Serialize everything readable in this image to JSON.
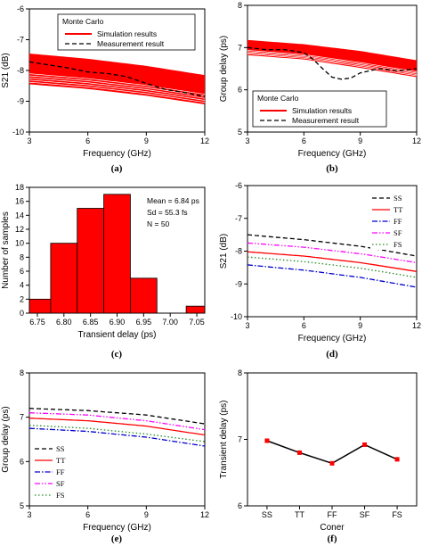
{
  "colors": {
    "simulation": "#ff0000",
    "measurement": "#000000",
    "SS": "#000000",
    "TT": "#ff0000",
    "FF": "#0000cc",
    "SF": "#ff00ff",
    "FS": "#228b22"
  },
  "chart_data": [
    {
      "id": "a",
      "type": "line",
      "caption": "(a)",
      "xlabel": "Frequency (GHz)",
      "ylabel": "S21 (dB)",
      "xlim": [
        3,
        12
      ],
      "ylim": [
        -10,
        -6
      ],
      "xticks": [
        3,
        6,
        9,
        12
      ],
      "yticks": [
        -10,
        -9,
        -8,
        -7,
        -6
      ],
      "legend_title": "Monte Carlo",
      "legend_position": "top",
      "band": {
        "name": "Simulation results",
        "x": [
          3,
          6,
          9,
          12
        ],
        "upper": [
          -7.45,
          -7.62,
          -7.85,
          -8.15
        ],
        "lower": [
          -8.45,
          -8.6,
          -8.82,
          -9.1
        ],
        "edge_lines": 5
      },
      "series": [
        {
          "name": "Measurement result",
          "style": "dashed",
          "x": [
            3,
            4,
            5,
            6,
            7,
            8,
            9,
            10,
            11,
            12
          ],
          "y": [
            -7.72,
            -7.82,
            -7.92,
            -8.05,
            -8.1,
            -8.2,
            -8.42,
            -8.62,
            -8.72,
            -8.85
          ]
        }
      ]
    },
    {
      "id": "b",
      "type": "line",
      "caption": "(b)",
      "xlabel": "Frequency (GHz)",
      "ylabel": "Group delay (ps)",
      "xlim": [
        3,
        12
      ],
      "ylim": [
        5,
        8
      ],
      "xticks": [
        3,
        6,
        9,
        12
      ],
      "yticks": [
        5,
        6,
        7,
        8
      ],
      "legend_title": "Monte Carlo",
      "legend_position": "bottom",
      "band": {
        "name": "Simulation results",
        "x": [
          3,
          6,
          9,
          12
        ],
        "upper": [
          7.18,
          7.08,
          6.92,
          6.7
        ],
        "lower": [
          6.82,
          6.72,
          6.52,
          6.3
        ],
        "edge_lines": 4
      },
      "series": [
        {
          "name": "Measurement result",
          "style": "dashed",
          "x": [
            3,
            4,
            5,
            6,
            6.5,
            7,
            7.5,
            8,
            8.5,
            9,
            10,
            11,
            12
          ],
          "y": [
            7.0,
            6.95,
            6.95,
            6.88,
            6.72,
            6.5,
            6.3,
            6.25,
            6.28,
            6.4,
            6.5,
            6.45,
            6.5
          ]
        }
      ]
    },
    {
      "id": "c",
      "type": "bar",
      "caption": "(c)",
      "xlabel": "Transient delay (ps)",
      "ylabel": "Number of samples",
      "xlim": [
        6.75,
        7.05
      ],
      "ylim": [
        0,
        18
      ],
      "xticks": [
        6.75,
        6.8,
        6.85,
        6.9,
        6.95,
        7.0,
        7.05
      ],
      "yticks": [
        0,
        2,
        4,
        6,
        8,
        10,
        12,
        14,
        16,
        18
      ],
      "bin_width": 0.05,
      "categories": [
        6.75,
        6.8,
        6.85,
        6.9,
        6.95,
        7.05
      ],
      "values": [
        2,
        10,
        15,
        17,
        5,
        1
      ],
      "annotations": [
        "Mean = 6.84 ps",
        "Sd = 55.3 fs",
        "N = 50"
      ]
    },
    {
      "id": "d",
      "type": "line",
      "caption": "(d)",
      "xlabel": "Frequency (GHz)",
      "ylabel": "S21 (dB)",
      "xlim": [
        3,
        12
      ],
      "ylim": [
        -10,
        -6
      ],
      "xticks": [
        3,
        6,
        9,
        12
      ],
      "yticks": [
        -10,
        -9,
        -8,
        -7,
        -6
      ],
      "legend_position": "top-right",
      "series": [
        {
          "name": "SS",
          "style": "dashed",
          "x": [
            3,
            6,
            9,
            12
          ],
          "y": [
            -7.5,
            -7.65,
            -7.85,
            -8.15
          ]
        },
        {
          "name": "TT",
          "style": "solid",
          "x": [
            3,
            6,
            9,
            12
          ],
          "y": [
            -8.02,
            -8.15,
            -8.35,
            -8.62
          ]
        },
        {
          "name": "FF",
          "style": "dashdot",
          "x": [
            3,
            6,
            9,
            12
          ],
          "y": [
            -8.42,
            -8.58,
            -8.8,
            -9.1
          ]
        },
        {
          "name": "SF",
          "style": "dashdotdot",
          "x": [
            3,
            6,
            9,
            12
          ],
          "y": [
            -7.75,
            -7.88,
            -8.08,
            -8.35
          ]
        },
        {
          "name": "FS",
          "style": "dotted",
          "x": [
            3,
            6,
            9,
            12
          ],
          "y": [
            -8.18,
            -8.32,
            -8.52,
            -8.8
          ]
        }
      ]
    },
    {
      "id": "e",
      "type": "line",
      "caption": "(e)",
      "xlabel": "Frequency (GHz)",
      "ylabel": "Group delay (ps)",
      "xlim": [
        3,
        12
      ],
      "ylim": [
        5,
        8
      ],
      "xticks": [
        3,
        6,
        9,
        12
      ],
      "yticks": [
        5,
        6,
        7,
        8
      ],
      "legend_position": "bottom-left",
      "series": [
        {
          "name": "SS",
          "style": "dashed",
          "x": [
            3,
            6,
            9,
            12
          ],
          "y": [
            7.2,
            7.15,
            7.05,
            6.85
          ]
        },
        {
          "name": "TT",
          "style": "solid",
          "x": [
            3,
            6,
            9,
            12
          ],
          "y": [
            6.98,
            6.92,
            6.8,
            6.6
          ]
        },
        {
          "name": "FF",
          "style": "dashdot",
          "x": [
            3,
            6,
            9,
            12
          ],
          "y": [
            6.75,
            6.68,
            6.55,
            6.35
          ]
        },
        {
          "name": "SF",
          "style": "dashdotdot",
          "x": [
            3,
            6,
            9,
            12
          ],
          "y": [
            7.1,
            7.05,
            6.92,
            6.72
          ]
        },
        {
          "name": "FS",
          "style": "dotted",
          "x": [
            3,
            6,
            9,
            12
          ],
          "y": [
            6.82,
            6.75,
            6.62,
            6.45
          ]
        }
      ]
    },
    {
      "id": "f",
      "type": "line",
      "caption": "(f)",
      "xlabel": "Coner",
      "ylabel": "Transient delay (ps)",
      "ylim": [
        6,
        8
      ],
      "yticks": [
        6,
        7,
        8
      ],
      "categories": [
        "SS",
        "TT",
        "FF",
        "SF",
        "FS"
      ],
      "values": [
        6.98,
        6.8,
        6.64,
        6.92,
        6.7
      ],
      "marker_color": "#ff0000"
    }
  ]
}
